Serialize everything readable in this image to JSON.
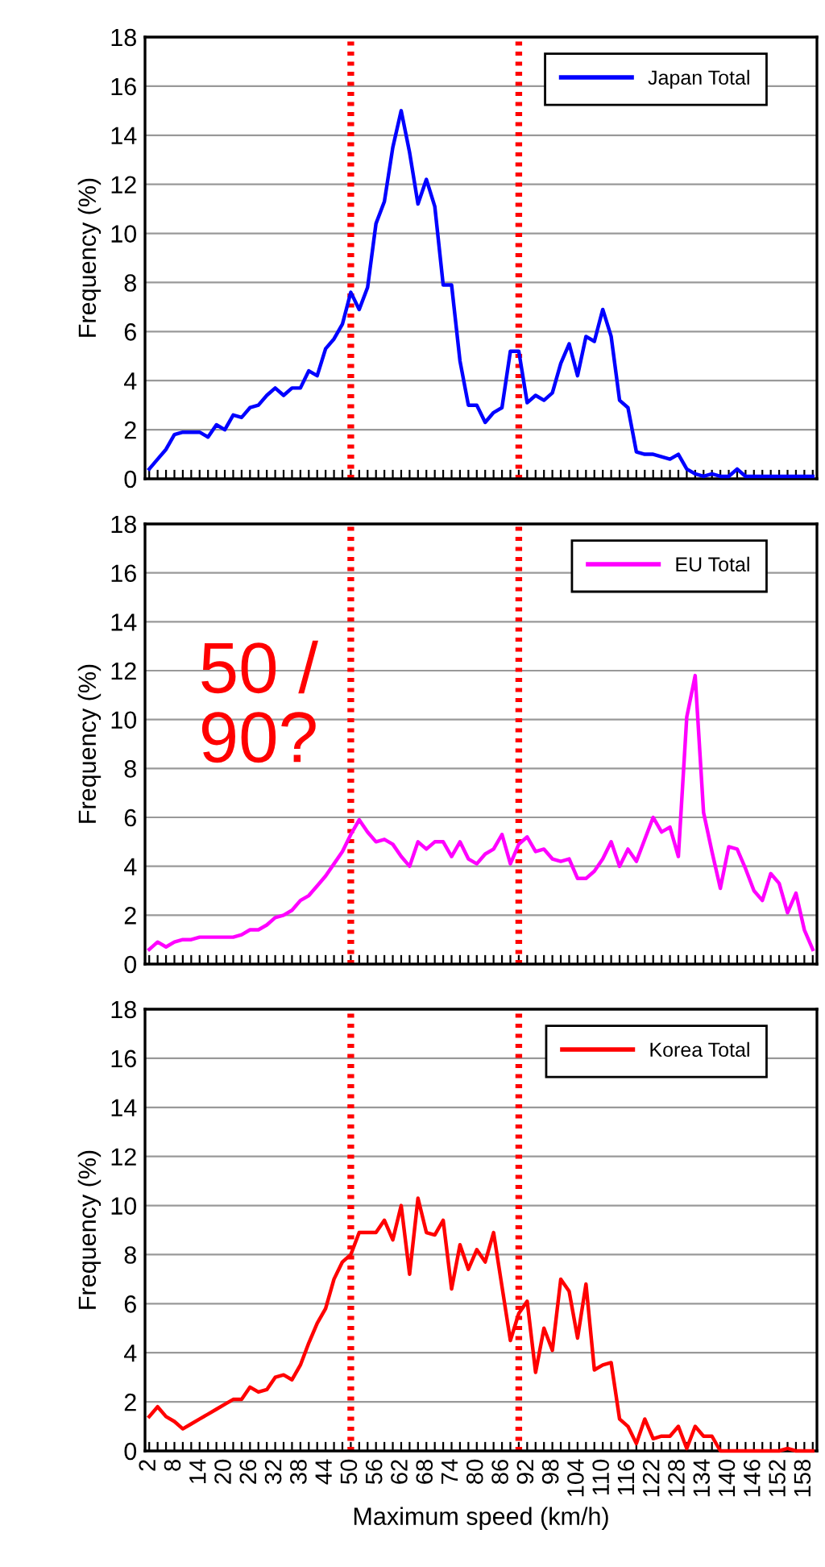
{
  "chart_data": [
    {
      "type": "line",
      "ylabel": "Frequency (%)",
      "x": [
        2,
        4,
        6,
        8,
        10,
        12,
        14,
        16,
        18,
        20,
        22,
        24,
        26,
        28,
        30,
        32,
        34,
        36,
        38,
        40,
        42,
        44,
        46,
        48,
        50,
        52,
        54,
        56,
        58,
        60,
        62,
        64,
        66,
        68,
        70,
        72,
        74,
        76,
        78,
        80,
        82,
        84,
        86,
        88,
        90,
        92,
        94,
        96,
        98,
        100,
        102,
        104,
        106,
        108,
        110,
        112,
        114,
        116,
        118,
        120,
        122,
        124,
        126,
        128,
        130,
        132,
        134,
        136,
        138,
        140,
        142,
        144,
        146,
        148,
        150,
        152,
        154,
        156,
        158,
        160
      ],
      "series": [
        {
          "name": "Japan Total",
          "color": "#0000ff",
          "values": [
            0.4,
            0.8,
            1.2,
            1.8,
            1.9,
            1.9,
            1.9,
            1.7,
            2.2,
            2.0,
            2.6,
            2.5,
            2.9,
            3.0,
            3.4,
            3.7,
            3.4,
            3.7,
            3.7,
            4.4,
            4.2,
            5.3,
            5.7,
            6.3,
            7.6,
            6.9,
            7.8,
            10.4,
            11.3,
            13.5,
            15.0,
            13.3,
            11.2,
            12.2,
            11.1,
            7.9,
            7.9,
            4.8,
            3.0,
            3.0,
            2.3,
            2.7,
            2.9,
            5.2,
            5.2,
            3.1,
            3.4,
            3.2,
            3.5,
            4.7,
            5.5,
            4.2,
            5.8,
            5.6,
            6.9,
            5.8,
            3.2,
            2.9,
            1.1,
            1.0,
            1.0,
            0.9,
            0.8,
            1.0,
            0.4,
            0.2,
            0.1,
            0.2,
            0.1,
            0.1,
            0.4,
            0.1,
            0.1,
            0.1,
            0.1,
            0.1,
            0.1,
            0.1,
            0.1,
            0.1
          ]
        }
      ],
      "xlim": [
        1,
        161
      ],
      "ylim": [
        0,
        18
      ],
      "yticks": [
        0,
        2,
        4,
        6,
        8,
        10,
        12,
        14,
        16,
        18
      ],
      "xticks": [
        2,
        {
          "value": 4,
          "label": null
        },
        {
          "value": 6,
          "label": null
        },
        8,
        {
          "value": 10,
          "label": null
        },
        {
          "value": 12,
          "label": null
        },
        14,
        {
          "value": 16,
          "label": null
        },
        {
          "value": 18,
          "label": null
        },
        20,
        {
          "value": 22,
          "label": null
        },
        {
          "value": 24,
          "label": null
        },
        26,
        {
          "value": 28,
          "label": null
        },
        {
          "value": 30,
          "label": null
        },
        32,
        {
          "value": 34,
          "label": null
        },
        {
          "value": 36,
          "label": null
        },
        38,
        {
          "value": 40,
          "label": null
        },
        {
          "value": 42,
          "label": null
        },
        44,
        {
          "value": 46,
          "label": null
        },
        {
          "value": 48,
          "label": null
        },
        50,
        {
          "value": 52,
          "label": null
        },
        {
          "value": 54,
          "label": null
        },
        56,
        {
          "value": 58,
          "label": null
        },
        {
          "value": 60,
          "label": null
        },
        62,
        {
          "value": 64,
          "label": null
        },
        {
          "value": 66,
          "label": null
        },
        68,
        {
          "value": 70,
          "label": null
        },
        {
          "value": 72,
          "label": null
        },
        74,
        {
          "value": 76,
          "label": null
        },
        {
          "value": 78,
          "label": null
        },
        80,
        {
          "value": 82,
          "label": null
        },
        {
          "value": 84,
          "label": null
        },
        86,
        {
          "value": 88,
          "label": null
        },
        {
          "value": 90,
          "label": null
        },
        92,
        {
          "value": 94,
          "label": null
        },
        {
          "value": 96,
          "label": null
        },
        98,
        {
          "value": 100,
          "label": null
        },
        {
          "value": 102,
          "label": null
        },
        104,
        {
          "value": 106,
          "label": null
        },
        {
          "value": 108,
          "label": null
        },
        110,
        {
          "value": 112,
          "label": null
        },
        {
          "value": 114,
          "label": null
        },
        116,
        {
          "value": 118,
          "label": null
        },
        {
          "value": 120,
          "label": null
        },
        122,
        {
          "value": 124,
          "label": null
        },
        {
          "value": 126,
          "label": null
        },
        128,
        {
          "value": 130,
          "label": null
        },
        {
          "value": 132,
          "label": null
        },
        134,
        {
          "value": 136,
          "label": null
        },
        {
          "value": 138,
          "label": null
        },
        140,
        {
          "value": 142,
          "label": null
        },
        {
          "value": 144,
          "label": null
        },
        146,
        {
          "value": 148,
          "label": null
        },
        {
          "value": 150,
          "label": null
        },
        152,
        {
          "value": 154,
          "label": null
        },
        {
          "value": 156,
          "label": null
        },
        158,
        {
          "value": 160,
          "label": null
        }
      ],
      "tick_labels": "y",
      "grid": "y",
      "legend": "top right",
      "marker": "none",
      "line_style": "solid",
      "ref_lines": [
        {
          "axis": "x",
          "value": 50,
          "color": "#ff0000",
          "line_style": "dotted"
        },
        {
          "axis": "x",
          "value": 90,
          "color": "#ff0000",
          "line_style": "dotted"
        }
      ]
    },
    {
      "type": "line",
      "ylabel": "Frequency (%)",
      "x": [
        2,
        4,
        6,
        8,
        10,
        12,
        14,
        16,
        18,
        20,
        22,
        24,
        26,
        28,
        30,
        32,
        34,
        36,
        38,
        40,
        42,
        44,
        46,
        48,
        50,
        52,
        54,
        56,
        58,
        60,
        62,
        64,
        66,
        68,
        70,
        72,
        74,
        76,
        78,
        80,
        82,
        84,
        86,
        88,
        90,
        92,
        94,
        96,
        98,
        100,
        102,
        104,
        106,
        108,
        110,
        112,
        114,
        116,
        118,
        120,
        122,
        124,
        126,
        128,
        130,
        132,
        134,
        136,
        138,
        140,
        142,
        144,
        146,
        148,
        150,
        152,
        154,
        156,
        158,
        160
      ],
      "series": [
        {
          "name": "EU Total",
          "color": "#ff00ff",
          "values": [
            0.6,
            0.9,
            0.7,
            0.9,
            1.0,
            1.0,
            1.1,
            1.1,
            1.1,
            1.1,
            1.1,
            1.2,
            1.4,
            1.4,
            1.6,
            1.9,
            2.0,
            2.2,
            2.6,
            2.8,
            3.2,
            3.6,
            4.1,
            4.6,
            5.3,
            5.9,
            5.4,
            5.0,
            5.1,
            4.9,
            4.4,
            4.0,
            5.0,
            4.7,
            5.0,
            5.0,
            4.4,
            5.0,
            4.3,
            4.1,
            4.5,
            4.7,
            5.3,
            4.1,
            4.9,
            5.2,
            4.6,
            4.7,
            4.3,
            4.2,
            4.3,
            3.5,
            3.5,
            3.8,
            4.3,
            5.0,
            4.0,
            4.7,
            4.2,
            5.1,
            6.0,
            5.4,
            5.6,
            4.4,
            10.1,
            11.8,
            6.2,
            4.6,
            3.1,
            4.8,
            4.7,
            3.9,
            3.0,
            2.6,
            3.7,
            3.3,
            2.1,
            2.9,
            1.4,
            0.6
          ]
        }
      ],
      "xlim": [
        1,
        161
      ],
      "ylim": [
        0,
        18
      ],
      "yticks": [
        0,
        2,
        4,
        6,
        8,
        10,
        12,
        14,
        16,
        18
      ],
      "xticks": [
        2,
        {
          "value": 4,
          "label": null
        },
        {
          "value": 6,
          "label": null
        },
        8,
        {
          "value": 10,
          "label": null
        },
        {
          "value": 12,
          "label": null
        },
        14,
        {
          "value": 16,
          "label": null
        },
        {
          "value": 18,
          "label": null
        },
        20,
        {
          "value": 22,
          "label": null
        },
        {
          "value": 24,
          "label": null
        },
        26,
        {
          "value": 28,
          "label": null
        },
        {
          "value": 30,
          "label": null
        },
        32,
        {
          "value": 34,
          "label": null
        },
        {
          "value": 36,
          "label": null
        },
        38,
        {
          "value": 40,
          "label": null
        },
        {
          "value": 42,
          "label": null
        },
        44,
        {
          "value": 46,
          "label": null
        },
        {
          "value": 48,
          "label": null
        },
        50,
        {
          "value": 52,
          "label": null
        },
        {
          "value": 54,
          "label": null
        },
        56,
        {
          "value": 58,
          "label": null
        },
        {
          "value": 60,
          "label": null
        },
        62,
        {
          "value": 64,
          "label": null
        },
        {
          "value": 66,
          "label": null
        },
        68,
        {
          "value": 70,
          "label": null
        },
        {
          "value": 72,
          "label": null
        },
        74,
        {
          "value": 76,
          "label": null
        },
        {
          "value": 78,
          "label": null
        },
        80,
        {
          "value": 82,
          "label": null
        },
        {
          "value": 84,
          "label": null
        },
        86,
        {
          "value": 88,
          "label": null
        },
        {
          "value": 90,
          "label": null
        },
        92,
        {
          "value": 94,
          "label": null
        },
        {
          "value": 96,
          "label": null
        },
        98,
        {
          "value": 100,
          "label": null
        },
        {
          "value": 102,
          "label": null
        },
        104,
        {
          "value": 106,
          "label": null
        },
        {
          "value": 108,
          "label": null
        },
        110,
        {
          "value": 112,
          "label": null
        },
        {
          "value": 114,
          "label": null
        },
        116,
        {
          "value": 118,
          "label": null
        },
        {
          "value": 120,
          "label": null
        },
        122,
        {
          "value": 124,
          "label": null
        },
        {
          "value": 126,
          "label": null
        },
        128,
        {
          "value": 130,
          "label": null
        },
        {
          "value": 132,
          "label": null
        },
        134,
        {
          "value": 136,
          "label": null
        },
        {
          "value": 138,
          "label": null
        },
        140,
        {
          "value": 142,
          "label": null
        },
        {
          "value": 144,
          "label": null
        },
        146,
        {
          "value": 148,
          "label": null
        },
        {
          "value": 150,
          "label": null
        },
        152,
        {
          "value": 154,
          "label": null
        },
        {
          "value": 156,
          "label": null
        },
        158,
        {
          "value": 160,
          "label": null
        }
      ],
      "tick_labels": "y",
      "grid": "y",
      "legend": "top right",
      "marker": "none",
      "line_style": "solid",
      "annotations": [
        "50 /\n90?"
      ],
      "ref_lines": [
        {
          "axis": "x",
          "value": 50,
          "color": "#ff0000",
          "line_style": "dotted"
        },
        {
          "axis": "x",
          "value": 90,
          "color": "#ff0000",
          "line_style": "dotted"
        }
      ]
    },
    {
      "type": "line",
      "ylabel": "Frequency (%)",
      "xlabel": "Maximum speed (km/h)",
      "x": [
        2,
        4,
        6,
        8,
        10,
        12,
        14,
        16,
        18,
        20,
        22,
        24,
        26,
        28,
        30,
        32,
        34,
        36,
        38,
        40,
        42,
        44,
        46,
        48,
        50,
        52,
        54,
        56,
        58,
        60,
        62,
        64,
        66,
        68,
        70,
        72,
        74,
        76,
        78,
        80,
        82,
        84,
        86,
        88,
        90,
        92,
        94,
        96,
        98,
        100,
        102,
        104,
        106,
        108,
        110,
        112,
        114,
        116,
        118,
        120,
        122,
        124,
        126,
        128,
        130,
        132,
        134,
        136,
        138,
        140,
        142,
        144,
        146,
        148,
        150,
        152,
        154,
        156,
        158,
        160
      ],
      "series": [
        {
          "name": "Korea Total",
          "color": "#ff0000",
          "values": [
            1.4,
            1.8,
            1.4,
            1.2,
            0.9,
            1.1,
            1.3,
            1.5,
            1.7,
            1.9,
            2.1,
            2.1,
            2.6,
            2.4,
            2.5,
            3.0,
            3.1,
            2.9,
            3.5,
            4.4,
            5.2,
            5.8,
            7.0,
            7.7,
            8.0,
            8.9,
            8.9,
            8.9,
            9.4,
            8.6,
            10.0,
            7.2,
            10.3,
            8.9,
            8.8,
            9.4,
            6.6,
            8.4,
            7.4,
            8.2,
            7.7,
            8.9,
            6.7,
            4.5,
            5.6,
            6.1,
            3.2,
            5.0,
            4.1,
            7.0,
            6.5,
            4.6,
            6.8,
            3.3,
            3.5,
            3.6,
            1.3,
            1.0,
            0.3,
            1.3,
            0.5,
            0.6,
            0.6,
            1.0,
            0.1,
            1.0,
            0.6,
            0.6,
            0.0,
            0.0,
            0.0,
            0.0,
            0.0,
            0.0,
            0.0,
            0.0,
            0.1,
            0.0,
            0.0,
            0.0
          ]
        }
      ],
      "xlim": [
        1,
        161
      ],
      "ylim": [
        0,
        18
      ],
      "yticks": [
        0,
        2,
        4,
        6,
        8,
        10,
        12,
        14,
        16,
        18
      ],
      "xticks": [
        2,
        {
          "value": 4,
          "label": null
        },
        {
          "value": 6,
          "label": null
        },
        8,
        {
          "value": 10,
          "label": null
        },
        {
          "value": 12,
          "label": null
        },
        14,
        {
          "value": 16,
          "label": null
        },
        {
          "value": 18,
          "label": null
        },
        20,
        {
          "value": 22,
          "label": null
        },
        {
          "value": 24,
          "label": null
        },
        26,
        {
          "value": 28,
          "label": null
        },
        {
          "value": 30,
          "label": null
        },
        32,
        {
          "value": 34,
          "label": null
        },
        {
          "value": 36,
          "label": null
        },
        38,
        {
          "value": 40,
          "label": null
        },
        {
          "value": 42,
          "label": null
        },
        44,
        {
          "value": 46,
          "label": null
        },
        {
          "value": 48,
          "label": null
        },
        50,
        {
          "value": 52,
          "label": null
        },
        {
          "value": 54,
          "label": null
        },
        56,
        {
          "value": 58,
          "label": null
        },
        {
          "value": 60,
          "label": null
        },
        62,
        {
          "value": 64,
          "label": null
        },
        {
          "value": 66,
          "label": null
        },
        68,
        {
          "value": 70,
          "label": null
        },
        {
          "value": 72,
          "label": null
        },
        74,
        {
          "value": 76,
          "label": null
        },
        {
          "value": 78,
          "label": null
        },
        80,
        {
          "value": 82,
          "label": null
        },
        {
          "value": 84,
          "label": null
        },
        86,
        {
          "value": 88,
          "label": null
        },
        {
          "value": 90,
          "label": null
        },
        92,
        {
          "value": 94,
          "label": null
        },
        {
          "value": 96,
          "label": null
        },
        98,
        {
          "value": 100,
          "label": null
        },
        {
          "value": 102,
          "label": null
        },
        104,
        {
          "value": 106,
          "label": null
        },
        {
          "value": 108,
          "label": null
        },
        110,
        {
          "value": 112,
          "label": null
        },
        {
          "value": 114,
          "label": null
        },
        116,
        {
          "value": 118,
          "label": null
        },
        {
          "value": 120,
          "label": null
        },
        122,
        {
          "value": 124,
          "label": null
        },
        {
          "value": 126,
          "label": null
        },
        128,
        {
          "value": 130,
          "label": null
        },
        {
          "value": 132,
          "label": null
        },
        134,
        {
          "value": 136,
          "label": null
        },
        {
          "value": 138,
          "label": null
        },
        140,
        {
          "value": 142,
          "label": null
        },
        {
          "value": 144,
          "label": null
        },
        146,
        {
          "value": 148,
          "label": null
        },
        {
          "value": 150,
          "label": null
        },
        152,
        {
          "value": 154,
          "label": null
        },
        {
          "value": 156,
          "label": null
        },
        158,
        {
          "value": 160,
          "label": null
        }
      ],
      "grid": "y",
      "legend": "top right",
      "marker": "none",
      "line_style": "solid",
      "ref_lines": [
        {
          "axis": "x",
          "value": 50,
          "color": "#ff0000",
          "line_style": "dotted"
        },
        {
          "axis": "x",
          "value": 90,
          "color": "#ff0000",
          "line_style": "dotted"
        }
      ]
    }
  ]
}
